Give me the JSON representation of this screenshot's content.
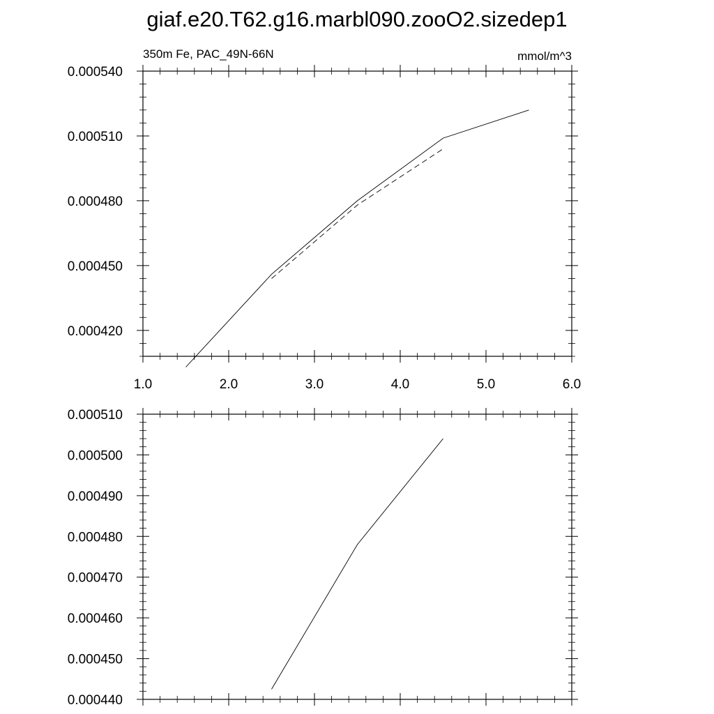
{
  "figure": {
    "title": "giaf.e20.T62.g16.marbl090.zooO2.sizedep1"
  },
  "chart_data": [
    {
      "type": "line",
      "subtitle_left": "350m Fe, PAC_49N-66N",
      "subtitle_right": "mmol/m^3",
      "xlim": [
        1.0,
        6.0
      ],
      "ylim": [
        0.000408,
        0.00054
      ],
      "x_ticks": [
        1.0,
        2.0,
        3.0,
        4.0,
        5.0,
        6.0
      ],
      "x_tick_labels": [
        "1.0",
        "2.0",
        "3.0",
        "4.0",
        "5.0",
        "6.0"
      ],
      "y_ticks": [
        0.00042,
        0.00045,
        0.00048,
        0.00051,
        0.00054
      ],
      "y_tick_labels": [
        "0.000420",
        "0.000450",
        "0.000480",
        "0.000510",
        "0.000540"
      ],
      "grid": false,
      "series": [
        {
          "style": "solid",
          "color": "#000000",
          "x": [
            1.5,
            2.5,
            3.5,
            4.5,
            5.5
          ],
          "y": [
            0.000403,
            0.000446,
            0.00048,
            0.000509,
            0.000522
          ]
        },
        {
          "style": "dashed",
          "color": "#000000",
          "x": [
            2.5,
            3.5,
            4.5
          ],
          "y": [
            0.000444,
            0.000478,
            0.000504
          ]
        }
      ]
    },
    {
      "type": "line",
      "xlim": [
        1.0,
        6.0
      ],
      "ylim": [
        0.00044,
        0.00051
      ],
      "x_ticks": [
        1.0,
        2.0,
        3.0,
        4.0,
        5.0,
        6.0
      ],
      "x_tick_labels": [],
      "y_ticks": [
        0.00044,
        0.00045,
        0.00046,
        0.00047,
        0.00048,
        0.00049,
        0.0005,
        0.00051
      ],
      "y_tick_labels": [
        "0.000440",
        "0.000450",
        "0.000460",
        "0.000470",
        "0.000480",
        "0.000490",
        "0.000500",
        "0.000510"
      ],
      "grid": false,
      "series": [
        {
          "style": "solid",
          "color": "#000000",
          "x": [
            2.5,
            3.5,
            4.5
          ],
          "y": [
            0.0004425,
            0.000478,
            0.000504
          ]
        }
      ]
    }
  ]
}
